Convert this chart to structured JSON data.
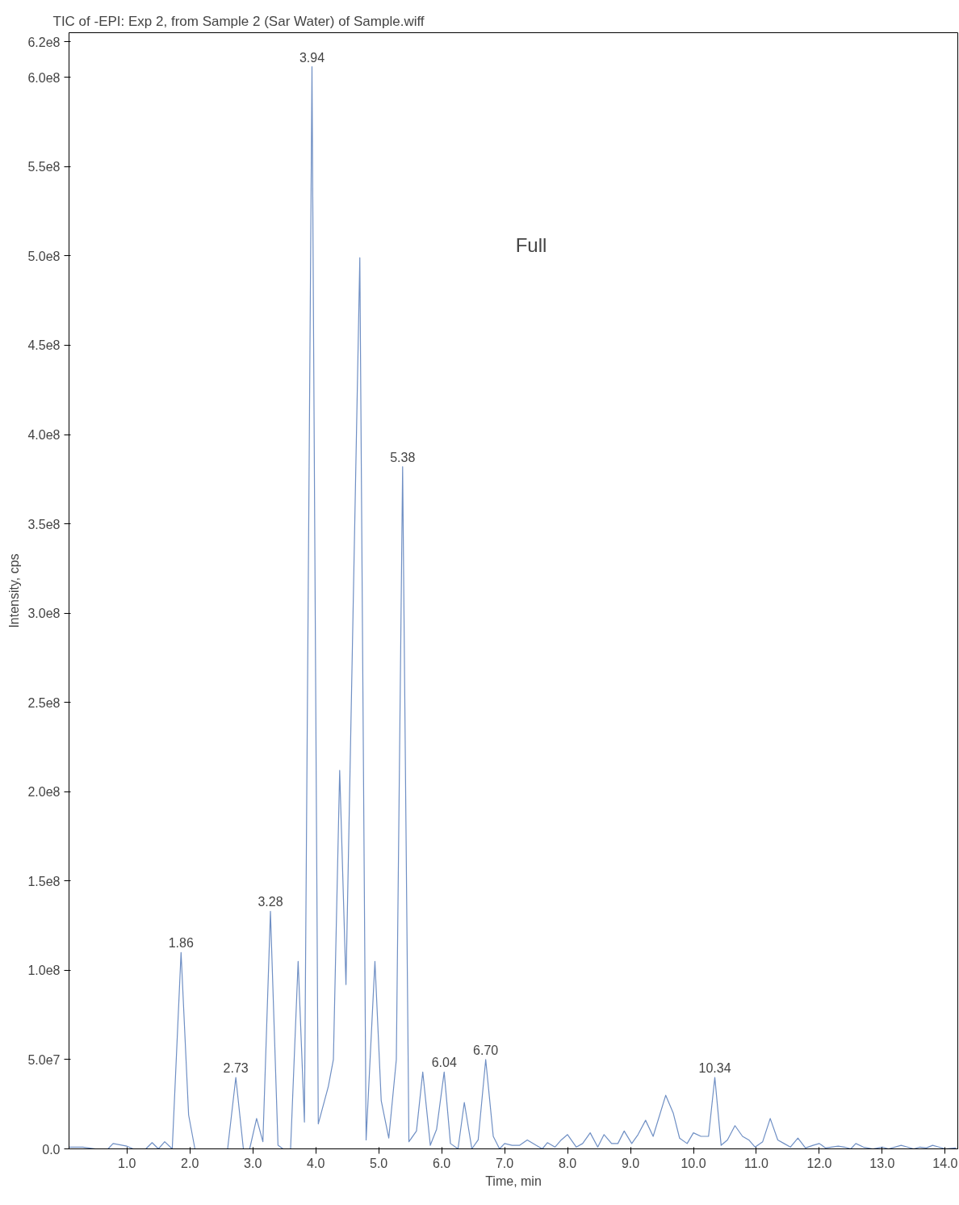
{
  "chart_data": {
    "type": "line",
    "title": "TIC of -EPI: Exp 2, from Sample 2 (Sar Water) of Sample.wiff",
    "xlabel": "Time, min",
    "ylabel": "Intensity, cps",
    "x": [
      0.08,
      0.3,
      0.5,
      0.7,
      0.78,
      1.0,
      1.1,
      1.3,
      1.4,
      1.5,
      1.6,
      1.72,
      1.86,
      1.98,
      2.08,
      2.6,
      2.73,
      2.85,
      2.95,
      3.06,
      3.16,
      3.28,
      3.4,
      3.48,
      3.6,
      3.72,
      3.82,
      3.94,
      4.04,
      4.2,
      4.28,
      4.38,
      4.48,
      4.7,
      4.8,
      4.94,
      5.04,
      5.16,
      5.28,
      5.38,
      5.48,
      5.6,
      5.7,
      5.82,
      5.92,
      6.04,
      6.14,
      6.26,
      6.36,
      6.48,
      6.58,
      6.7,
      6.82,
      6.92,
      7.0,
      7.12,
      7.24,
      7.36,
      7.5,
      7.6,
      7.68,
      7.8,
      7.9,
      8.0,
      8.14,
      8.24,
      8.36,
      8.48,
      8.58,
      8.7,
      8.8,
      8.9,
      9.02,
      9.12,
      9.24,
      9.36,
      9.56,
      9.68,
      9.78,
      9.9,
      10.0,
      10.12,
      10.24,
      10.34,
      10.44,
      10.54,
      10.66,
      10.78,
      10.88,
      10.98,
      11.1,
      11.22,
      11.34,
      11.44,
      11.54,
      11.66,
      11.78,
      11.9,
      12.0,
      12.1,
      12.3,
      12.4,
      12.5,
      12.58,
      12.7,
      12.85,
      13.0,
      13.1,
      13.3,
      13.4,
      13.5,
      13.6,
      13.7,
      13.8,
      13.9,
      14.0,
      14.17
    ],
    "series": [
      {
        "color": "#6f8fc4",
        "values": [
          1000000.0,
          1000000.0,
          0,
          0,
          3000000.0,
          1500000.0,
          0,
          0,
          3500000.0,
          0,
          4000000.0,
          0,
          110000000.0,
          19000000.0,
          0,
          0,
          40000000.0,
          0,
          0,
          17000000.0,
          4000000.0,
          133000000.0,
          2000000.0,
          0,
          0,
          105000000.0,
          15000000.0,
          606000000.0,
          14000000.0,
          35000000.0,
          50000000.0,
          212000000.0,
          92000000.0,
          499000000.0,
          5000000.0,
          105000000.0,
          27000000.0,
          6000000.0,
          50000000.0,
          382000000.0,
          4000000.0,
          10000000.0,
          43000000.0,
          2000000.0,
          11000000.0,
          43000000.0,
          3000000.0,
          0,
          26000000.0,
          0,
          5000000.0,
          50000000.0,
          7000000.0,
          0,
          3000000.0,
          2000000.0,
          2000000.0,
          5000000.0,
          2000000.0,
          0,
          3500000.0,
          1000000.0,
          5000000.0,
          8000000.0,
          1000000.0,
          3000000.0,
          9000000.0,
          1000000.0,
          8000000.0,
          3000000.0,
          3000000.0,
          10000000.0,
          3000000.0,
          8000000.0,
          16000000.0,
          7000000.0,
          30000000.0,
          20000000.0,
          6000000.0,
          3000000.0,
          9000000.0,
          7000000.0,
          7000000.0,
          40000000.0,
          2000000.0,
          5000000.0,
          13000000.0,
          7000000.0,
          5000000.0,
          1000000.0,
          4000000.0,
          17000000.0,
          5000000.0,
          3000000.0,
          1000000.0,
          6000000.0,
          500000.0,
          2000000.0,
          3000000.0,
          500000.0,
          1500000.0,
          1000000.0,
          0,
          3000000.0,
          1000000.0,
          0,
          1000000.0,
          0,
          2000000.0,
          1000000.0,
          0,
          1000000.0,
          500000.0,
          2000000.0,
          1000000.0,
          0,
          500000.0
        ]
      }
    ],
    "xlim": [
      0.08,
      14.2
    ],
    "ylim": [
      0,
      625000000.0
    ],
    "xticks": [
      {
        "value": 1,
        "label": "1.0"
      },
      {
        "value": 2,
        "label": "2.0"
      },
      {
        "value": 3,
        "label": "3.0"
      },
      {
        "value": 4,
        "label": "4.0"
      },
      {
        "value": 5,
        "label": "5.0"
      },
      {
        "value": 6,
        "label": "6.0"
      },
      {
        "value": 7,
        "label": "7.0"
      },
      {
        "value": 8,
        "label": "8.0"
      },
      {
        "value": 9,
        "label": "9.0"
      },
      {
        "value": 10,
        "label": "10.0"
      },
      {
        "value": 11,
        "label": "11.0"
      },
      {
        "value": 12,
        "label": "12.0"
      },
      {
        "value": 13,
        "label": "13.0"
      },
      {
        "value": 14,
        "label": "14.0"
      }
    ],
    "yticks": [
      {
        "value": 0,
        "label": "0.0"
      },
      {
        "value": 50000000.0,
        "label": "5.0e7"
      },
      {
        "value": 100000000.0,
        "label": "1.0e8"
      },
      {
        "value": 150000000.0,
        "label": "1.5e8"
      },
      {
        "value": 200000000.0,
        "label": "2.0e8"
      },
      {
        "value": 250000000.0,
        "label": "2.5e8"
      },
      {
        "value": 300000000.0,
        "label": "3.0e8"
      },
      {
        "value": 350000000.0,
        "label": "3.5e8"
      },
      {
        "value": 400000000.0,
        "label": "4.0e8"
      },
      {
        "value": 450000000.0,
        "label": "4.5e8"
      },
      {
        "value": 500000000.0,
        "label": "5.0e8"
      },
      {
        "value": 550000000.0,
        "label": "5.5e8"
      },
      {
        "value": 600000000.0,
        "label": "6.0e8"
      },
      {
        "value": 620000000.0,
        "label": "6.2e8"
      }
    ],
    "annotations": [
      {
        "text": "1.86",
        "x": 1.86,
        "y": 110000000.0
      },
      {
        "text": "2.73",
        "x": 2.73,
        "y": 40000000.0
      },
      {
        "text": "3.28",
        "x": 3.28,
        "y": 133000000.0
      },
      {
        "text": "3.94",
        "x": 3.94,
        "y": 606000000.0
      },
      {
        "text": "5.38",
        "x": 5.38,
        "y": 382000000.0
      },
      {
        "text": "6.04",
        "x": 6.04,
        "y": 43000000.0
      },
      {
        "text": "6.70",
        "x": 6.7,
        "y": 50000000.0
      },
      {
        "text": "10.34",
        "x": 10.34,
        "y": 40000000.0
      },
      "Full"
    ],
    "grid": false,
    "line_style": "solid"
  }
}
